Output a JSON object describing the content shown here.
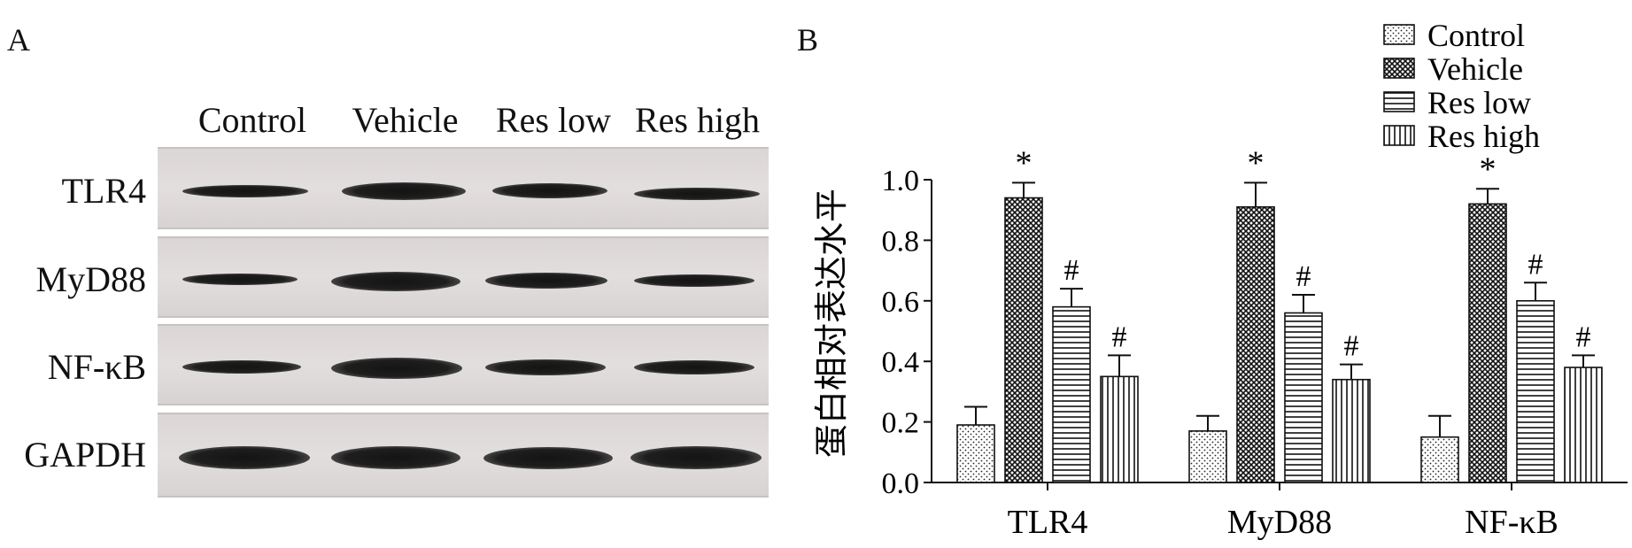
{
  "panel_a": {
    "letter": "A",
    "columns": [
      "Control",
      "Vehicle",
      "Res low",
      "Res high"
    ],
    "rows": [
      "TLR4",
      "MyD88",
      "NF-κB",
      "GAPDH"
    ]
  },
  "panel_b": {
    "letter": "B"
  },
  "chart_data": {
    "type": "bar",
    "title": "",
    "xlabel": "",
    "ylabel": "蛋白相对表达水平",
    "categories": [
      "TLR4",
      "MyD88",
      "NF-κB"
    ],
    "ylim": [
      0.0,
      1.0
    ],
    "yticks": [
      "0.0",
      "0.2",
      "0.4",
      "0.6",
      "0.8",
      "1.0"
    ],
    "grid": false,
    "legend_position": "top-right",
    "series": [
      {
        "name": "Control",
        "pattern": "dots",
        "values": [
          0.19,
          0.17,
          0.15
        ],
        "errors": [
          0.06,
          0.05,
          0.07
        ],
        "marks": [
          "",
          "",
          ""
        ]
      },
      {
        "name": "Vehicle",
        "pattern": "crosshatch",
        "values": [
          0.94,
          0.91,
          0.92
        ],
        "errors": [
          0.05,
          0.08,
          0.05
        ],
        "marks": [
          "*",
          "*",
          "*"
        ]
      },
      {
        "name": "Res low",
        "pattern": "horizontal",
        "values": [
          0.58,
          0.56,
          0.6
        ],
        "errors": [
          0.06,
          0.06,
          0.06
        ],
        "marks": [
          "#",
          "#",
          "#"
        ]
      },
      {
        "name": "Res high",
        "pattern": "vertical",
        "values": [
          0.35,
          0.34,
          0.38
        ],
        "errors": [
          0.07,
          0.05,
          0.04
        ],
        "marks": [
          "#",
          "#",
          "#"
        ]
      }
    ]
  }
}
